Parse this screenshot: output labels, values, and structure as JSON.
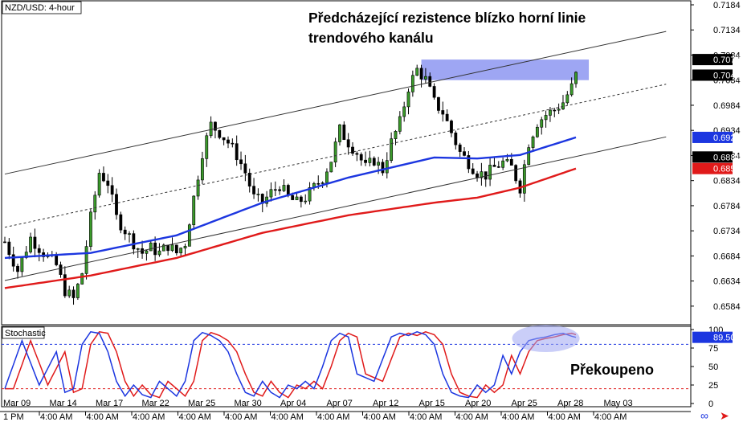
{
  "chart_data": {
    "type": "candlestick",
    "symbol_label": "NZD/USD: 4-hour",
    "price_axis": {
      "ylim": [
        0.6547,
        0.7192
      ],
      "ticks": [
        "0.7184",
        "0.7134",
        "0.7084",
        "0.7034",
        "0.6984",
        "0.6934",
        "0.6884",
        "0.6834",
        "0.6784",
        "0.6734",
        "0.6684",
        "0.6634",
        "0.6584"
      ]
    },
    "price_badges": [
      {
        "value": "0.7075",
        "bg": "#000000",
        "fg": "#ffffff"
      },
      {
        "value": "0.7044",
        "bg": "#000000",
        "fg": "#ffffff"
      },
      {
        "value": "0.6920",
        "bg": "#1c36e0",
        "fg": "#ffffff"
      },
      {
        "value": "0.6881",
        "bg": "#000000",
        "fg": "#ffffff"
      },
      {
        "value": "0.6858",
        "bg": "#e01a1a",
        "fg": "#ffffff"
      }
    ],
    "date_labels": [
      "Mar 09",
      "Mar 14",
      "Mar 17",
      "Mar 22",
      "Mar 25",
      "Mar 30",
      "Apr 04",
      "Apr 07",
      "Apr 12",
      "Apr 15",
      "Apr 20",
      "Apr 25",
      "Apr 28",
      "May 03"
    ],
    "time_labels": [
      "4:00 AM",
      "4:00 AM",
      "4:00 AM",
      "4:00 AM",
      "4:00 AM",
      "4:00 AM",
      "4:00 AM",
      "4:00 AM",
      "4:00 AM",
      "4:00 AM",
      "4:00 AM",
      "4:00 AM",
      "4:00 AM"
    ],
    "time_axis_prefix": "1 PM",
    "price_path": [
      [
        0,
        0.6712
      ],
      [
        3,
        0.6655
      ],
      [
        6,
        0.672
      ],
      [
        9,
        0.669
      ],
      [
        12,
        0.6665
      ],
      [
        14,
        0.6615
      ],
      [
        16,
        0.6598
      ],
      [
        18,
        0.665
      ],
      [
        20,
        0.676
      ],
      [
        22,
        0.685
      ],
      [
        24,
        0.683
      ],
      [
        26,
        0.676
      ],
      [
        28,
        0.6735
      ],
      [
        30,
        0.671
      ],
      [
        32,
        0.669
      ],
      [
        34,
        0.67
      ],
      [
        36,
        0.669
      ],
      [
        38,
        0.6705
      ],
      [
        40,
        0.669
      ],
      [
        42,
        0.671
      ],
      [
        44,
        0.68
      ],
      [
        46,
        0.689
      ],
      [
        48,
        0.6945
      ],
      [
        50,
        0.693
      ],
      [
        52,
        0.691
      ],
      [
        54,
        0.6885
      ],
      [
        56,
        0.685
      ],
      [
        58,
        0.68
      ],
      [
        60,
        0.679
      ],
      [
        62,
        0.681
      ],
      [
        64,
        0.6825
      ],
      [
        66,
        0.68
      ],
      [
        68,
        0.679
      ],
      [
        70,
        0.68
      ],
      [
        72,
        0.682
      ],
      [
        74,
        0.684
      ],
      [
        76,
        0.6875
      ],
      [
        78,
        0.6935
      ],
      [
        80,
        0.691
      ],
      [
        82,
        0.689
      ],
      [
        84,
        0.686
      ],
      [
        86,
        0.6875
      ],
      [
        88,
        0.6855
      ],
      [
        90,
        0.691
      ],
      [
        92,
        0.695
      ],
      [
        94,
        0.702
      ],
      [
        96,
        0.7055
      ],
      [
        98,
        0.7035
      ],
      [
        100,
        0.699
      ],
      [
        102,
        0.697
      ],
      [
        104,
        0.693
      ],
      [
        106,
        0.689
      ],
      [
        108,
        0.687
      ],
      [
        110,
        0.685
      ],
      [
        112,
        0.6845
      ],
      [
        114,
        0.686
      ],
      [
        116,
        0.687
      ],
      [
        118,
        0.686
      ],
      [
        120,
        0.682
      ],
      [
        122,
        0.691
      ],
      [
        124,
        0.695
      ],
      [
        126,
        0.6965
      ],
      [
        128,
        0.6975
      ],
      [
        130,
        0.699
      ],
      [
        132,
        0.702
      ],
      [
        133,
        0.7044
      ]
    ],
    "moving_averages": [
      {
        "color": "#1c36e0",
        "points": [
          [
            0,
            0.668
          ],
          [
            20,
            0.669
          ],
          [
            40,
            0.6725
          ],
          [
            60,
            0.679
          ],
          [
            80,
            0.684
          ],
          [
            100,
            0.688
          ],
          [
            110,
            0.6878
          ],
          [
            120,
            0.6885
          ],
          [
            133,
            0.692
          ]
        ]
      },
      {
        "color": "#e01a1a",
        "points": [
          [
            0,
            0.662
          ],
          [
            20,
            0.6645
          ],
          [
            40,
            0.668
          ],
          [
            60,
            0.673
          ],
          [
            80,
            0.6765
          ],
          [
            100,
            0.679
          ],
          [
            110,
            0.68
          ],
          [
            120,
            0.682
          ],
          [
            133,
            0.6858
          ]
        ]
      }
    ],
    "channel": {
      "color": "#333333",
      "lower": [
        [
          0,
          0.6635
        ],
        [
          154,
          0.6921
        ]
      ],
      "middle": [
        [
          0,
          0.6741
        ],
        [
          154,
          0.7026
        ]
      ],
      "upper": [
        [
          0,
          0.6847
        ],
        [
          154,
          0.7131
        ]
      ]
    },
    "resistance_zone": {
      "x_from": 97,
      "x_to": 136,
      "y_low": 0.7034,
      "y_high": 0.7075,
      "color": "#9ea6f3"
    },
    "bar_count": 160,
    "stochastic": {
      "label": "Stochastic",
      "ylim": [
        0,
        100
      ],
      "ticks": [
        "100",
        "75",
        "50",
        "25",
        "0"
      ],
      "levels": [
        80,
        20
      ],
      "last_value": "89.50",
      "k_color": "#1c36e0",
      "d_color": "#e01a1a",
      "k_points": [
        [
          0,
          20
        ],
        [
          4,
          85
        ],
        [
          8,
          25
        ],
        [
          12,
          70
        ],
        [
          14,
          15
        ],
        [
          16,
          20
        ],
        [
          18,
          80
        ],
        [
          20,
          97
        ],
        [
          22,
          95
        ],
        [
          24,
          70
        ],
        [
          26,
          30
        ],
        [
          28,
          10
        ],
        [
          30,
          25
        ],
        [
          32,
          12
        ],
        [
          34,
          8
        ],
        [
          36,
          30
        ],
        [
          38,
          20
        ],
        [
          40,
          10
        ],
        [
          42,
          30
        ],
        [
          44,
          85
        ],
        [
          46,
          96
        ],
        [
          48,
          92
        ],
        [
          50,
          85
        ],
        [
          52,
          70
        ],
        [
          54,
          40
        ],
        [
          56,
          15
        ],
        [
          58,
          10
        ],
        [
          60,
          30
        ],
        [
          62,
          15
        ],
        [
          64,
          8
        ],
        [
          66,
          25
        ],
        [
          68,
          20
        ],
        [
          70,
          30
        ],
        [
          72,
          20
        ],
        [
          74,
          50
        ],
        [
          76,
          85
        ],
        [
          78,
          95
        ],
        [
          80,
          90
        ],
        [
          82,
          40
        ],
        [
          84,
          35
        ],
        [
          86,
          30
        ],
        [
          88,
          60
        ],
        [
          90,
          90
        ],
        [
          92,
          95
        ],
        [
          94,
          92
        ],
        [
          96,
          97
        ],
        [
          98,
          93
        ],
        [
          100,
          80
        ],
        [
          102,
          40
        ],
        [
          104,
          15
        ],
        [
          106,
          10
        ],
        [
          108,
          8
        ],
        [
          110,
          25
        ],
        [
          112,
          15
        ],
        [
          114,
          25
        ],
        [
          116,
          65
        ],
        [
          118,
          40
        ],
        [
          120,
          70
        ],
        [
          122,
          85
        ],
        [
          124,
          88
        ],
        [
          126,
          90
        ],
        [
          128,
          93
        ],
        [
          130,
          95
        ],
        [
          132,
          91
        ],
        [
          133,
          89.5
        ]
      ]
    }
  },
  "annotations": {
    "main_line1": "Předcházející rezistence blízko horní linie",
    "main_line2": "trendového kanálu",
    "overbought": "Překoupeno"
  },
  "footer_icons": [
    "link-icon",
    "arrow-icon"
  ]
}
